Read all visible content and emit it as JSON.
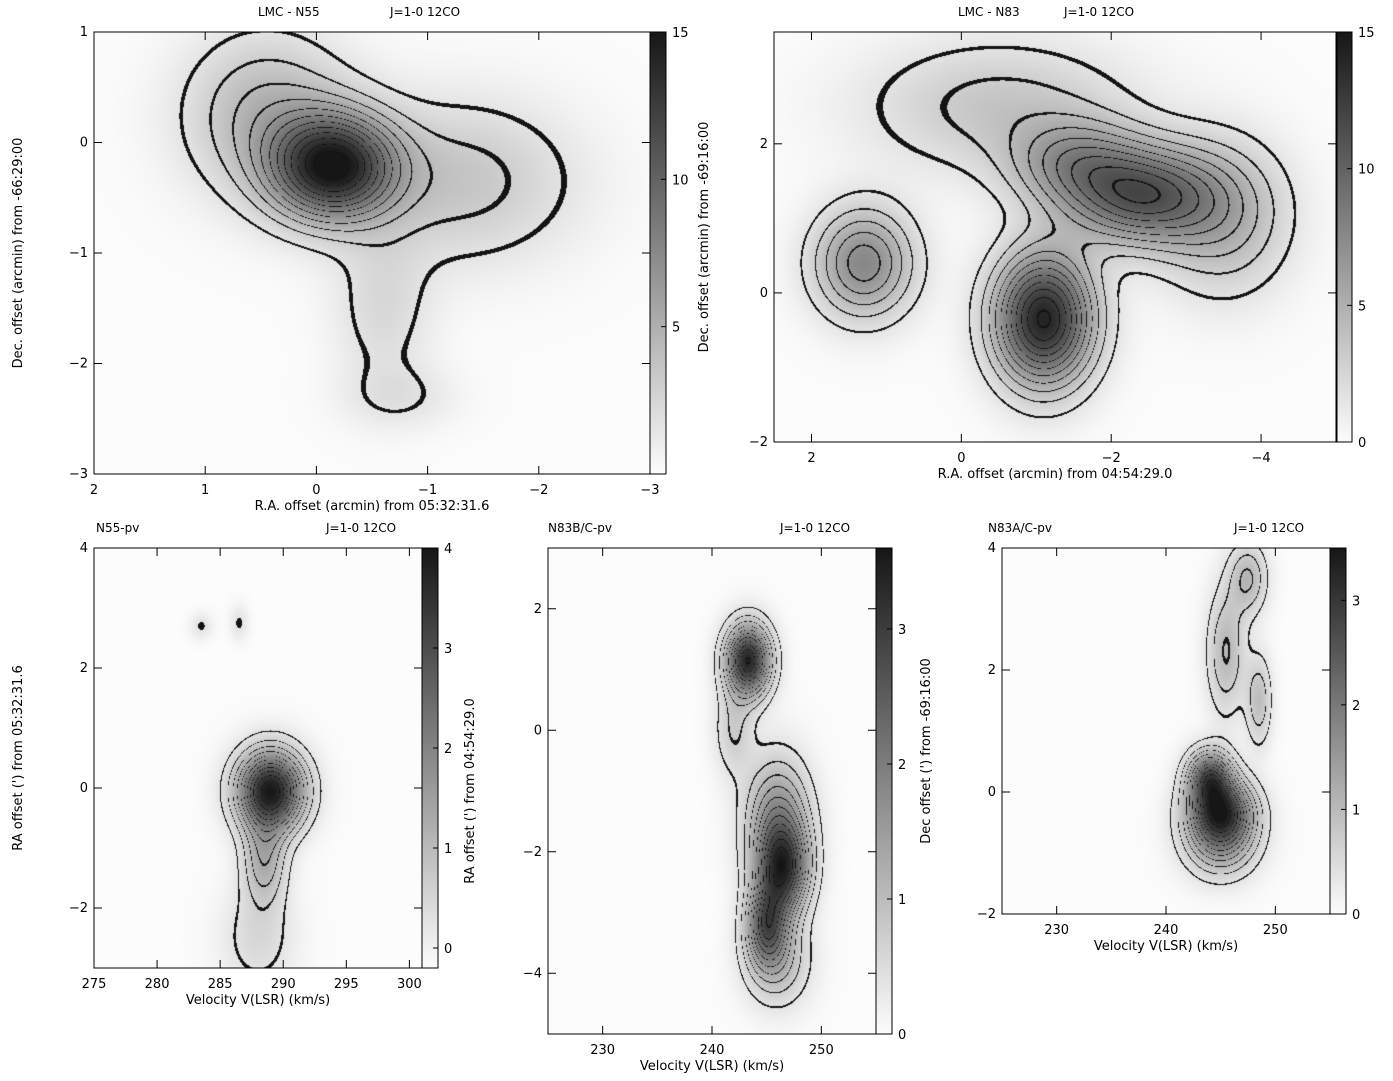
{
  "chart_data": [
    {
      "id": "n55-map",
      "type": "heatmap",
      "title_left": "LMC - N55",
      "title_right": "J=1-0 12CO",
      "xlabel": "R.A. offset (arcmin) from 05:32:31.6",
      "ylabel": "Dec. offset (arcmin) from -66:29:00",
      "xlim": [
        2,
        -3
      ],
      "ylim": [
        -3,
        1
      ],
      "xticks": [
        "2",
        "1",
        "0",
        "−1",
        "−2",
        "−3"
      ],
      "xtick_values": [
        2,
        1,
        0,
        -1,
        -2,
        -3
      ],
      "yticks": [
        "−3",
        "−2",
        "−1",
        "0",
        "1"
      ],
      "ytick_values": [
        -3,
        -2,
        -1,
        0,
        1
      ],
      "colorbar": {
        "range": [
          0,
          15
        ],
        "ticks": [
          "5",
          "10",
          "15"
        ],
        "tick_values": [
          5,
          10,
          15
        ]
      },
      "peaks": [
        {
          "x": -0.15,
          "y": -0.22,
          "value": 14,
          "sx": 0.38,
          "sy": 0.32
        },
        {
          "x": -1.3,
          "y": -0.35,
          "value": 3,
          "sx": 0.7,
          "sy": 0.5
        },
        {
          "x": 0.45,
          "y": 0.25,
          "value": 4,
          "sx": 0.5,
          "sy": 0.5
        },
        {
          "x": -0.6,
          "y": -1.5,
          "value": 1.8,
          "sx": 0.3,
          "sy": 0.5
        },
        {
          "x": -0.75,
          "y": -2.3,
          "value": 1.2,
          "sx": 0.35,
          "sy": 0.2
        }
      ]
    },
    {
      "id": "n83-map",
      "type": "heatmap",
      "title_left": "LMC - N83",
      "title_right": "J=1-0 12CO",
      "xlabel": "R.A. offset (arcmin) from 04:54:29.0",
      "ylabel": "Dec. offset (arcmin) from -69:16:00",
      "xlim": [
        2.5,
        -5
      ],
      "ylim": [
        -2,
        3.5
      ],
      "xticks": [
        "2",
        "0",
        "−2",
        "−4"
      ],
      "xtick_values": [
        2,
        0,
        -2,
        -4
      ],
      "yticks": [
        "−2",
        "0",
        "2"
      ],
      "ytick_values": [
        -2,
        0,
        2
      ],
      "colorbar": {
        "range": [
          0,
          15
        ],
        "ticks": [
          "0",
          "5",
          "10",
          "15"
        ],
        "tick_values": [
          0,
          5,
          10,
          15
        ]
      },
      "peaks": [
        {
          "x": -1.1,
          "y": -0.35,
          "value": 14,
          "sx": 0.45,
          "sy": 0.6
        },
        {
          "x": -2.4,
          "y": 1.3,
          "value": 10,
          "sx": 0.7,
          "sy": 0.45
        },
        {
          "x": 1.3,
          "y": 0.4,
          "value": 7,
          "sx": 0.45,
          "sy": 0.5
        },
        {
          "x": -1.5,
          "y": 1.75,
          "value": 5,
          "sx": 0.6,
          "sy": 0.4
        },
        {
          "x": -3.5,
          "y": 1.0,
          "value": 4,
          "sx": 0.6,
          "sy": 0.7
        },
        {
          "x": -0.5,
          "y": 2.5,
          "value": 3,
          "sx": 1.2,
          "sy": 0.6
        }
      ]
    },
    {
      "id": "n55-pv",
      "type": "heatmap",
      "title_left": "N55-pv",
      "title_right": "J=1-0 12CO",
      "xlabel": "Velocity V(LSR) (km/s)",
      "ylabel": "RA offset (') from 05:32:31.6",
      "xlim": [
        275,
        301
      ],
      "ylim": [
        -3,
        4
      ],
      "xticks": [
        "275",
        "280",
        "285",
        "290",
        "295",
        "300"
      ],
      "xtick_values": [
        275,
        280,
        285,
        290,
        295,
        300
      ],
      "yticks": [
        "−2",
        "0",
        "2",
        "4"
      ],
      "ytick_values": [
        -2,
        0,
        2,
        4
      ],
      "colorbar": {
        "range": [
          -0.2,
          4
        ],
        "ticks": [
          "0",
          "1",
          "2",
          "3",
          "4"
        ],
        "tick_values": [
          0,
          1,
          2,
          3,
          4
        ]
      },
      "peaks": [
        {
          "x": 289,
          "y": -0.05,
          "value": 3.9,
          "sx": 1.8,
          "sy": 0.45
        },
        {
          "x": 288.5,
          "y": -1.2,
          "value": 1.2,
          "sx": 1.2,
          "sy": 0.5
        },
        {
          "x": 288,
          "y": -2.5,
          "value": 0.5,
          "sx": 2.0,
          "sy": 0.6
        },
        {
          "x": 283.5,
          "y": 2.7,
          "value": 0.35,
          "sx": 0.6,
          "sy": 0.15
        },
        {
          "x": 286.5,
          "y": 2.75,
          "value": 0.35,
          "sx": 0.5,
          "sy": 0.2
        }
      ]
    },
    {
      "id": "n83bc-pv",
      "type": "heatmap",
      "title_left": "N83B/C-pv",
      "title_right": "J=1-0 12CO",
      "xlabel": "Velocity V(LSR) (km/s)",
      "ylabel": "RA offset (') from 04:54:29.0",
      "ylabel_right": "Dec offset (') from -69:16:00",
      "xlim": [
        225,
        255
      ],
      "ylim": [
        -5,
        3
      ],
      "xticks": [
        "230",
        "240",
        "250"
      ],
      "xtick_values": [
        230,
        240,
        250
      ],
      "yticks": [
        "−4",
        "−2",
        "0",
        "2"
      ],
      "ytick_values": [
        -4,
        -2,
        0,
        2
      ],
      "colorbar": {
        "range": [
          0,
          3.6
        ],
        "ticks": [
          "0",
          "1",
          "2",
          "3"
        ],
        "tick_values": [
          0,
          1,
          2,
          3
        ]
      },
      "peaks": [
        {
          "x": 243.3,
          "y": 1.15,
          "value": 3.3,
          "sx": 1.4,
          "sy": 0.4
        },
        {
          "x": 246.5,
          "y": -2.3,
          "value": 2.6,
          "sx": 1.6,
          "sy": 0.5
        },
        {
          "x": 245,
          "y": -3.2,
          "value": 2.2,
          "sx": 1.3,
          "sy": 0.45
        },
        {
          "x": 246,
          "y": -1.5,
          "value": 1.6,
          "sx": 2.0,
          "sy": 0.7
        },
        {
          "x": 242,
          "y": 0.0,
          "value": 0.6,
          "sx": 1.2,
          "sy": 0.5
        },
        {
          "x": 246,
          "y": -3.8,
          "value": 0.9,
          "sx": 2.0,
          "sy": 0.5
        }
      ]
    },
    {
      "id": "n83ac-pv",
      "type": "heatmap",
      "title_left": "N83A/C-pv",
      "title_right": "J=1-0 12CO",
      "xlabel": "Velocity V(LSR) (km/s)",
      "ylabel": "",
      "xlim": [
        225,
        255
      ],
      "ylim": [
        -2,
        4
      ],
      "xticks": [
        "230",
        "240",
        "250"
      ],
      "xtick_values": [
        230,
        240,
        250
      ],
      "yticks": [
        "−2",
        "0",
        "2",
        "4"
      ],
      "ytick_values": [
        -2,
        0,
        2,
        4
      ],
      "colorbar": {
        "range": [
          0,
          3.5
        ],
        "ticks": [
          "0",
          "1",
          "2",
          "3"
        ],
        "tick_values": [
          0,
          1,
          2,
          3
        ]
      },
      "peaks": [
        {
          "x": 245,
          "y": -0.3,
          "value": 2.7,
          "sx": 2.0,
          "sy": 0.35
        },
        {
          "x": 244,
          "y": 0.25,
          "value": 2.3,
          "sx": 1.4,
          "sy": 0.3
        },
        {
          "x": 245,
          "y": -0.8,
          "value": 1.4,
          "sx": 2.2,
          "sy": 0.4
        },
        {
          "x": 245.5,
          "y": 2.3,
          "value": 0.9,
          "sx": 1.2,
          "sy": 0.7
        },
        {
          "x": 248.5,
          "y": 1.5,
          "value": 0.8,
          "sx": 0.8,
          "sy": 0.5
        },
        {
          "x": 247.5,
          "y": 3.5,
          "value": 0.9,
          "sx": 1.2,
          "sy": 0.4
        }
      ]
    }
  ]
}
